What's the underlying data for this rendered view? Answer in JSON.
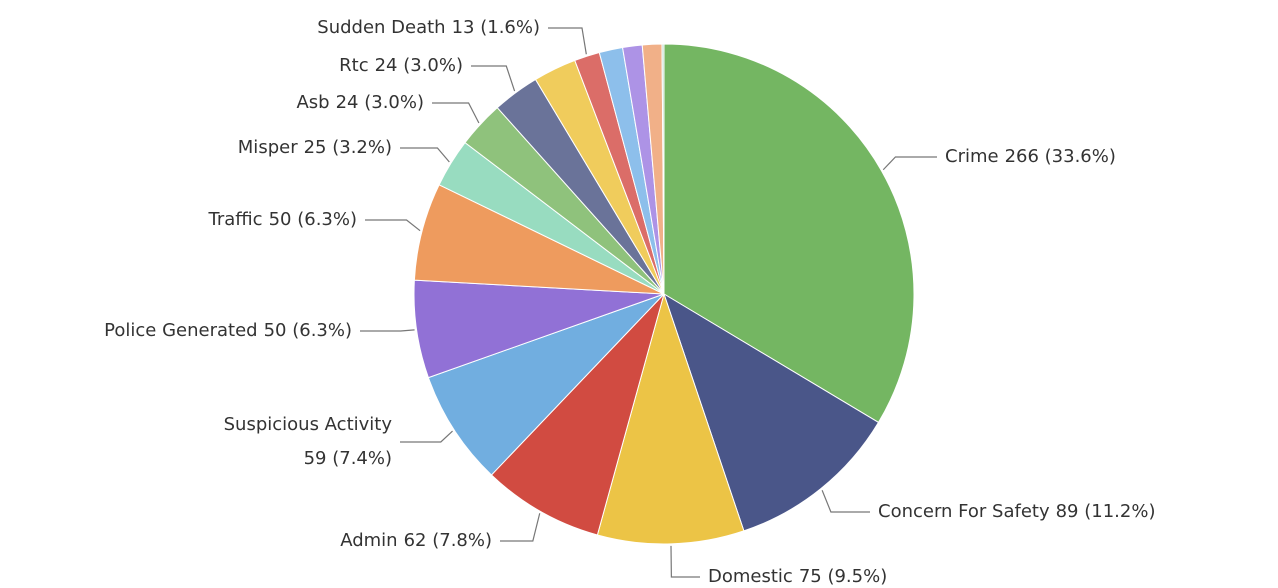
{
  "chart_data": {
    "type": "pie",
    "categories": [
      "Crime",
      "Concern For Safety",
      "Domestic",
      "Admin",
      "Suspicious Activity",
      "Police Generated",
      "Traffic",
      "Misper",
      "Asb",
      "Rtc",
      null,
      "Sudden Death",
      null,
      null,
      null,
      null
    ],
    "values": [
      266,
      89,
      75,
      62,
      59,
      50,
      50,
      25,
      24,
      24,
      22,
      13,
      12,
      10,
      10,
      1
    ],
    "value_labels": [
      "266 (33.6%)",
      "89 (11.2%)",
      "75 (9.5%)",
      "62 (7.8%)",
      "59 (7.4%)",
      "50 (6.3%)",
      "50 (6.3%)",
      "25 (3.2%)",
      "24 (3.0%)",
      "24 (3.0%)",
      null,
      "13 (1.6%)",
      null,
      null,
      null,
      null
    ],
    "colors": [
      "#74b662",
      "#4a5689",
      "#ecc446",
      "#d14b41",
      "#71aee0",
      "#9171d6",
      "#ee9b5e",
      "#98dcc0",
      "#8fc27c",
      "#6a7399",
      "#f0cc5c",
      "#db6d68",
      "#8dbfeb",
      "#ad93e6",
      "#f1b088",
      "#b9d9c9"
    ]
  }
}
